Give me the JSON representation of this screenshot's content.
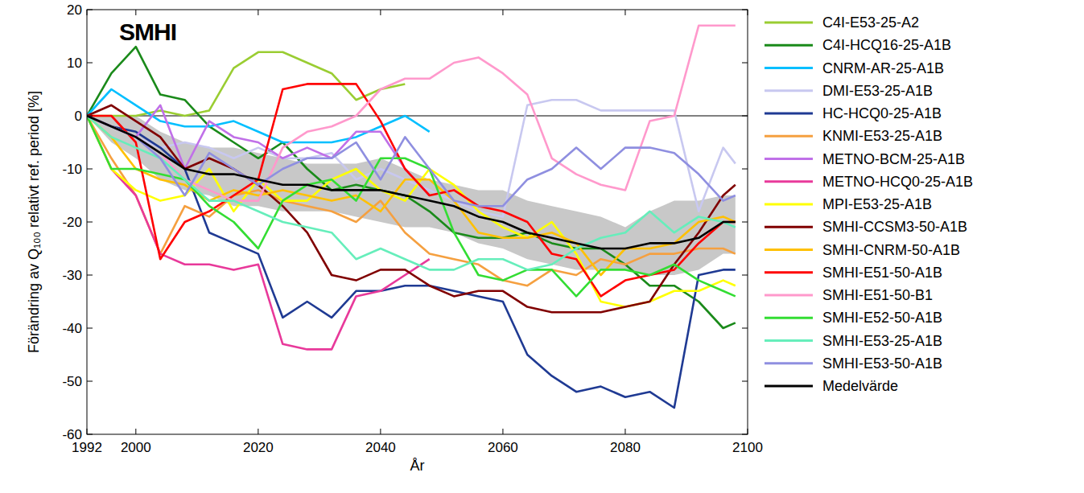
{
  "chart_data": {
    "type": "line",
    "x_label": "År",
    "y_label": "Förändring av Q₁₀₀ relativt ref. period [%]",
    "annotations": [
      "SMHI"
    ],
    "reference_lines": [
      0
    ],
    "x": [
      1992,
      1996,
      2000,
      2004,
      2008,
      2012,
      2016,
      2020,
      2024,
      2028,
      2032,
      2036,
      2040,
      2044,
      2048,
      2052,
      2056,
      2060,
      2064,
      2068,
      2072,
      2076,
      2080,
      2084,
      2088,
      2092,
      2096,
      2098
    ],
    "xlim": [
      1992,
      2100
    ],
    "xticks": [
      1992,
      2000,
      2020,
      2040,
      2060,
      2080,
      2100
    ],
    "ylim": [
      -60,
      20
    ],
    "yticks": [
      -60,
      -50,
      -40,
      -30,
      -20,
      -10,
      0,
      10,
      20
    ],
    "grid": false,
    "legend": "outside-right",
    "band": {
      "color": "#c8c8c8",
      "lower": [
        0,
        -5,
        -8,
        -12,
        -14,
        -15,
        -17,
        -17,
        -18,
        -18,
        -18,
        -19,
        -20,
        -21,
        -21,
        -22,
        -24,
        -25,
        -27,
        -28,
        -29,
        -29,
        -29,
        -30,
        -30,
        -29,
        -26,
        -26
      ],
      "upper": [
        0,
        0,
        0,
        -3,
        -5,
        -6,
        -6,
        -7,
        -8,
        -9,
        -9,
        -9,
        -8,
        -10,
        -12,
        -13,
        -14,
        -14,
        -16,
        -17,
        -18,
        -19,
        -21,
        -18,
        -16,
        -16,
        -15,
        -15
      ]
    },
    "series": [
      {
        "name": "C4I-E53-25-A2",
        "color": "#9acd32",
        "values": [
          0,
          0,
          0,
          1,
          0,
          1,
          9,
          12,
          12,
          10,
          8,
          3,
          5,
          6,
          null,
          null,
          null,
          null,
          null,
          null,
          null,
          null,
          null,
          null,
          null,
          null,
          null,
          null
        ]
      },
      {
        "name": "C4I-HCQ16-25-A1B",
        "color": "#1a8a1a",
        "values": [
          0,
          8,
          13,
          4,
          3,
          -2,
          -5,
          -8,
          -5,
          -10,
          -14,
          -13,
          -14,
          -15,
          -18,
          -22,
          -23,
          -23,
          -22,
          -24,
          -25,
          -25,
          -28,
          -32,
          -32,
          -35,
          -40,
          -39
        ]
      },
      {
        "name": "CNRM-AR-25-A1B",
        "color": "#00bfff",
        "values": [
          0,
          5,
          2,
          -1,
          -2,
          -2,
          -1,
          -3,
          -5,
          -5,
          -5,
          -4,
          -2,
          0,
          -3,
          null,
          null,
          null,
          null,
          null,
          null,
          null,
          null,
          null,
          null,
          null,
          null,
          null
        ]
      },
      {
        "name": "DMI-E53-25-A1B",
        "color": "#c8c8f0",
        "values": [
          0,
          -2,
          -4,
          -6,
          -5,
          -6,
          -8,
          -6,
          -8,
          -8,
          -7,
          -12,
          -10,
          -12,
          -14,
          -16,
          -18,
          -19,
          2,
          3,
          3,
          1,
          1,
          1,
          1,
          -18,
          -6,
          -9
        ]
      },
      {
        "name": "HC-HCQ0-25-A1B",
        "color": "#1f3a93",
        "values": [
          0,
          -2,
          -3,
          -6,
          -10,
          -22,
          -24,
          -26,
          -38,
          -35,
          -38,
          -33,
          -33,
          -32,
          -32,
          -33,
          -34,
          -35,
          -45,
          -49,
          -52,
          -51,
          -53,
          -52,
          -55,
          -30,
          -29,
          -29
        ]
      },
      {
        "name": "KNMI-E53-25-A1B",
        "color": "#f5a040",
        "values": [
          0,
          -8,
          -15,
          -26,
          -17,
          -19,
          -15,
          -14,
          -16,
          -17,
          -18,
          -20,
          -16,
          -22,
          -26,
          -27,
          -28,
          -31,
          -32,
          -29,
          -30,
          -27,
          -28,
          -26,
          -26,
          -25,
          -25,
          -26
        ]
      },
      {
        "name": "METNO-BCM-25-A1B",
        "color": "#c070e8",
        "values": [
          0,
          -2,
          -4,
          2,
          -10,
          -1,
          -4,
          -5,
          -8,
          -6,
          -8,
          -3,
          -3,
          -10,
          -15,
          null,
          null,
          null,
          null,
          null,
          null,
          null,
          null,
          null,
          null,
          null,
          null,
          null
        ]
      },
      {
        "name": "METNO-HCQ0-25-A1B",
        "color": "#e8399a",
        "values": [
          0,
          -10,
          -15,
          -26,
          -28,
          -28,
          -29,
          -28,
          -43,
          -44,
          -44,
          -34,
          -33,
          -30,
          -27,
          null,
          null,
          null,
          null,
          null,
          null,
          null,
          null,
          null,
          null,
          null,
          null,
          null
        ]
      },
      {
        "name": "MPI-E53-25-A1B",
        "color": "#ffff00",
        "values": [
          0,
          -10,
          -14,
          -16,
          -15,
          -10,
          -18,
          -12,
          -16,
          -16,
          -12,
          -10,
          -14,
          -16,
          -10,
          -13,
          -18,
          -21,
          -23,
          -20,
          -26,
          -35,
          -36,
          -35,
          -33,
          -33,
          -31,
          -32
        ]
      },
      {
        "name": "SMHI-CCSM3-50-A1B",
        "color": "#800000",
        "values": [
          0,
          2,
          -1,
          -4,
          -10,
          -8,
          -10,
          -13,
          -17,
          -22,
          -30,
          -31,
          -29,
          -29,
          -32,
          -34,
          -33,
          -33,
          -36,
          -37,
          -37,
          -37,
          -36,
          -35,
          -28,
          -22,
          -15,
          -13
        ]
      },
      {
        "name": "SMHI-CNRM-50-A1B",
        "color": "#ffc000",
        "values": [
          0,
          -4,
          -10,
          -12,
          -13,
          -16,
          -14,
          -15,
          -14,
          -15,
          -16,
          -15,
          -18,
          -12,
          -12,
          -16,
          -22,
          -23,
          -23,
          -22,
          -24,
          -30,
          -25,
          -25,
          -24,
          -20,
          -19,
          -20
        ]
      },
      {
        "name": "SMHI-E51-50-A1B",
        "color": "#ff0000",
        "values": [
          0,
          0,
          -5,
          -27,
          -20,
          -18,
          -15,
          -12,
          5,
          6,
          6,
          6,
          -1,
          -10,
          -15,
          -14,
          -17,
          -18,
          -20,
          -26,
          -27,
          -34,
          -31,
          -30,
          -29,
          -24,
          -20,
          -20
        ]
      },
      {
        "name": "SMHI-E51-50-B1",
        "color": "#ff99cc",
        "values": [
          0,
          -2,
          -4,
          -7,
          -12,
          -14,
          -16,
          -16,
          -6,
          -3,
          -2,
          0,
          5,
          7,
          7,
          10,
          11,
          8,
          4,
          -8,
          -11,
          -13,
          -14,
          -1,
          0,
          17,
          17,
          17
        ]
      },
      {
        "name": "SMHI-E52-50-A1B",
        "color": "#33dd33",
        "values": [
          0,
          -10,
          -10,
          -11,
          -12,
          -17,
          -20,
          -25,
          -16,
          -13,
          -12,
          -16,
          -8,
          -8,
          -10,
          -22,
          -30,
          -31,
          -29,
          -29,
          -34,
          -29,
          -29,
          -30,
          -28,
          -31,
          -33,
          -34
        ]
      },
      {
        "name": "SMHI-E53-25-A1B",
        "color": "#66eebb",
        "values": [
          0,
          -4,
          -6,
          -8,
          -12,
          -16,
          -16,
          -18,
          -20,
          -21,
          -22,
          -27,
          -25,
          -27,
          -29,
          -29,
          -27,
          -27,
          -29,
          -28,
          -25,
          -23,
          -22,
          -18,
          -22,
          -19,
          -20,
          -21
        ]
      },
      {
        "name": "SMHI-E53-50-A1B",
        "color": "#8f8fe0",
        "values": [
          0,
          -2,
          -4,
          -8,
          -15,
          -7,
          -10,
          -13,
          -10,
          -8,
          -8,
          -5,
          -12,
          -4,
          -10,
          -16,
          -17,
          -17,
          -12,
          -10,
          -6,
          -10,
          -6,
          -6,
          -7,
          -11,
          -16,
          -15
        ]
      },
      {
        "name": "Medelvärde",
        "color": "#000000",
        "values": [
          0,
          -2,
          -4,
          -7,
          -10,
          -11,
          -11,
          -12,
          -13,
          -13,
          -14,
          -14,
          -14,
          -15,
          -16,
          -17,
          -19,
          -20,
          -22,
          -23,
          -24,
          -25,
          -25,
          -24,
          -24,
          -23,
          -20,
          -20
        ]
      }
    ]
  }
}
